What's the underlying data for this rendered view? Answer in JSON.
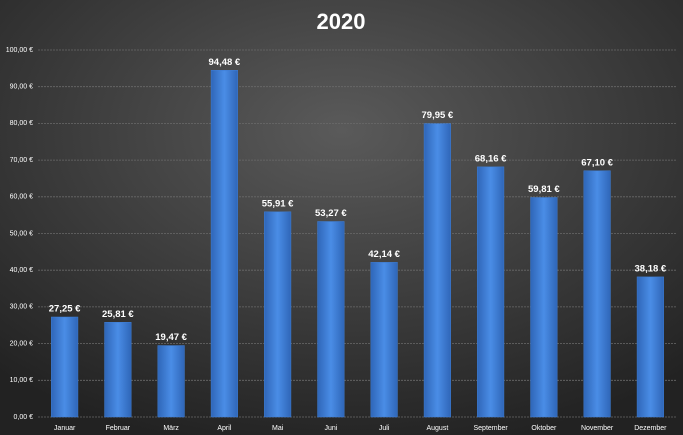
{
  "chart_data": {
    "type": "bar",
    "title": "2020",
    "categories": [
      "Januar",
      "Februar",
      "März",
      "April",
      "Mai",
      "Juni",
      "Juli",
      "August",
      "September",
      "Oktober",
      "November",
      "Dezember"
    ],
    "values": [
      27.25,
      25.81,
      19.47,
      94.48,
      55.91,
      53.27,
      42.14,
      79.95,
      68.16,
      59.81,
      67.1,
      38.18
    ],
    "value_labels": [
      "27,25 €",
      "25,81 €",
      "19,47 €",
      "94,48 €",
      "55,91 €",
      "53,27 €",
      "42,14 €",
      "79,95 €",
      "68,16 €",
      "59,81 €",
      "67,10 €",
      "38,18 €"
    ],
    "color": "#3f7fd6",
    "ylim": [
      0,
      100
    ],
    "yticks": [
      {
        "value": 0,
        "label": "0,00 €"
      },
      {
        "value": 10,
        "label": "10,00 €"
      },
      {
        "value": 20,
        "label": "20,00 €"
      },
      {
        "value": 30,
        "label": "30,00 €"
      },
      {
        "value": 40,
        "label": "40,00 €"
      },
      {
        "value": 50,
        "label": "50,00 €"
      },
      {
        "value": 60,
        "label": "60,00 €"
      },
      {
        "value": 70,
        "label": "70,00 €"
      },
      {
        "value": 80,
        "label": "80,00 €"
      },
      {
        "value": 90,
        "label": "90,00 €"
      },
      {
        "value": 100,
        "label": "100,00 €"
      }
    ],
    "grid": true
  }
}
